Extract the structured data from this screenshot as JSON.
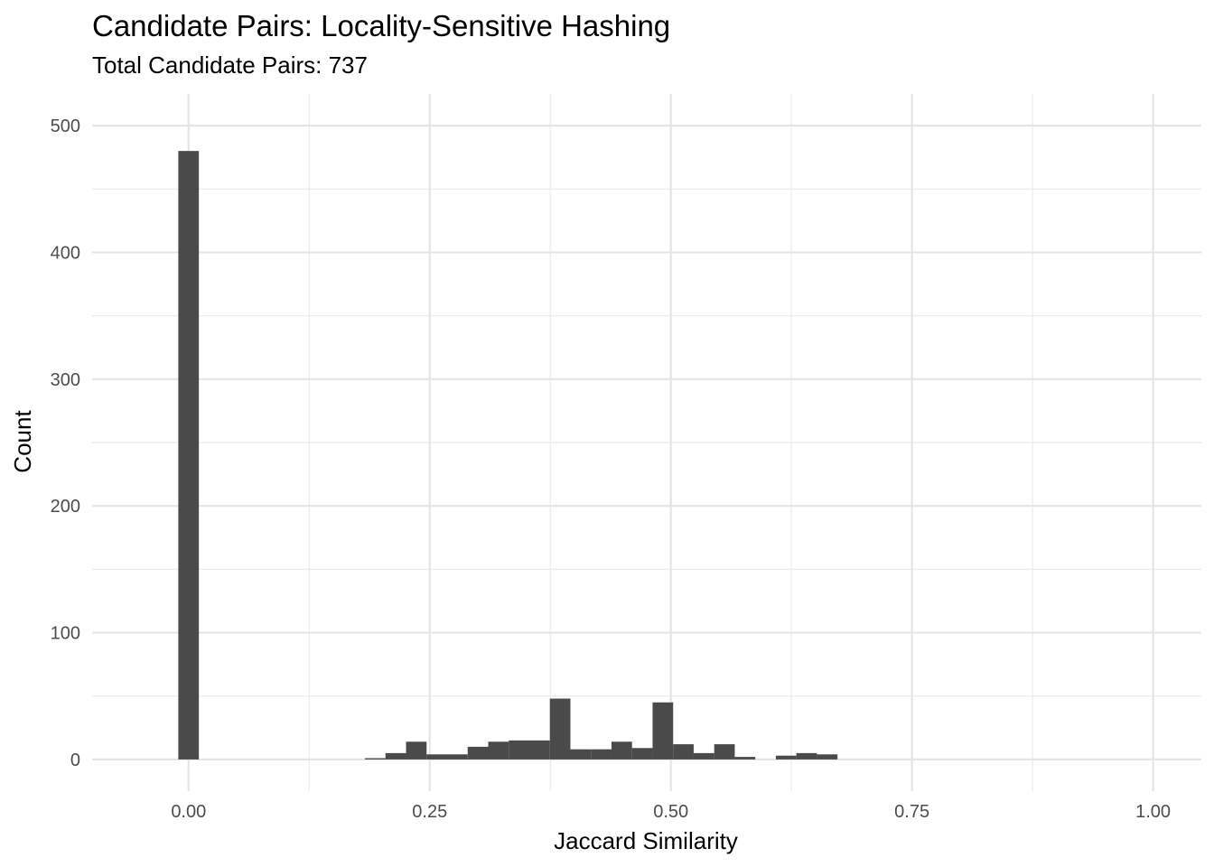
{
  "chart_data": {
    "type": "bar",
    "title": "Candidate Pairs: Locality-Sensitive Hashing",
    "subtitle": "Total Candidate Pairs: 737",
    "xlabel": "Jaccard Similarity",
    "ylabel": "Count",
    "xlim": [
      -0.1,
      1.05
    ],
    "ylim": [
      -25,
      525
    ],
    "x_ticks": [
      0.0,
      0.25,
      0.5,
      0.75,
      1.0
    ],
    "x_tick_labels": [
      "0.00",
      "0.25",
      "0.50",
      "0.75",
      "1.00"
    ],
    "y_ticks": [
      0,
      100,
      200,
      300,
      400,
      500
    ],
    "y_tick_labels": [
      "0",
      "100",
      "200",
      "300",
      "400",
      "500"
    ],
    "grid": true,
    "bar_color": "#4a4a4a",
    "bin_width": 0.0213,
    "bins": [
      {
        "x": 0.0,
        "count": 480
      },
      {
        "x": 0.1935,
        "count": 1
      },
      {
        "x": 0.2148,
        "count": 5
      },
      {
        "x": 0.2361,
        "count": 14
      },
      {
        "x": 0.2574,
        "count": 4
      },
      {
        "x": 0.2787,
        "count": 4
      },
      {
        "x": 0.3,
        "count": 10
      },
      {
        "x": 0.3213,
        "count": 14
      },
      {
        "x": 0.3426,
        "count": 15
      },
      {
        "x": 0.3639,
        "count": 15
      },
      {
        "x": 0.3852,
        "count": 48
      },
      {
        "x": 0.4065,
        "count": 8
      },
      {
        "x": 0.4278,
        "count": 8
      },
      {
        "x": 0.4491,
        "count": 14
      },
      {
        "x": 0.4704,
        "count": 9
      },
      {
        "x": 0.4917,
        "count": 45
      },
      {
        "x": 0.513,
        "count": 12
      },
      {
        "x": 0.5343,
        "count": 5
      },
      {
        "x": 0.5556,
        "count": 12
      },
      {
        "x": 0.5769,
        "count": 2
      },
      {
        "x": 0.6195,
        "count": 3
      },
      {
        "x": 0.6408,
        "count": 5
      },
      {
        "x": 0.6621,
        "count": 4
      }
    ]
  }
}
